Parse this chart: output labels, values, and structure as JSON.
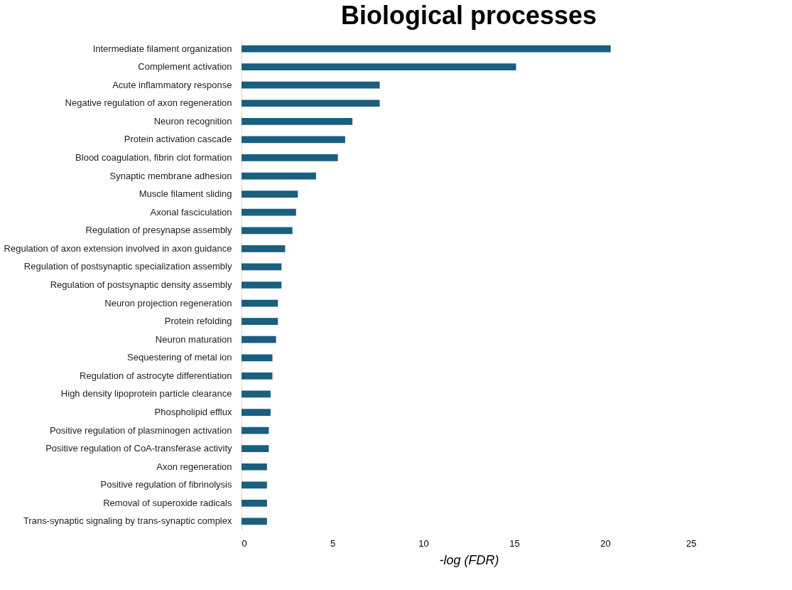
{
  "chart_data": {
    "type": "bar",
    "orientation": "horizontal",
    "title": "Biological processes",
    "xlabel": "-log (FDR)",
    "categories": [
      "Intermediate filament organization",
      "Complement activation",
      "Acute inflammatory response",
      "Negative regulation of axon regeneration",
      "Neuron recognition",
      "Protein activation cascade",
      "Blood coagulation, fibrin clot formation",
      "Synaptic membrane adhesion",
      "Muscle filament sliding",
      "Axonal fasciculation",
      "Regulation of presynapse assembly",
      "Regulation of axon extension involved in axon guidance",
      "Regulation of postsynaptic specialization assembly",
      "Regulation of postsynaptic density assembly",
      "Neuron projection regeneration",
      "Protein refolding",
      "Neuron maturation",
      "Sequestering of metal ion",
      "Regulation of astrocyte differentiation",
      "High density lipoprotein particle clearance",
      "Phospholipid efflux",
      "Positive regulation of plasminogen activation",
      "Positive regulation of CoA-transferase activity",
      "Axon regeneration",
      "Positive regulation of fibrinolysis",
      "Removal of superoxide radicals",
      "Trans-synaptic signaling by trans-synaptic complex"
    ],
    "values": [
      20.3,
      15.1,
      7.6,
      7.6,
      6.1,
      5.7,
      5.3,
      4.1,
      3.1,
      3.0,
      2.8,
      2.4,
      2.2,
      2.2,
      2.0,
      2.0,
      1.9,
      1.7,
      1.7,
      1.6,
      1.6,
      1.5,
      1.5,
      1.4,
      1.4,
      1.4,
      1.4
    ],
    "color": "#1a5e80",
    "xlim": [
      0,
      25
    ],
    "xticks": [
      0,
      5,
      10,
      15,
      20,
      25
    ],
    "grid": false
  }
}
